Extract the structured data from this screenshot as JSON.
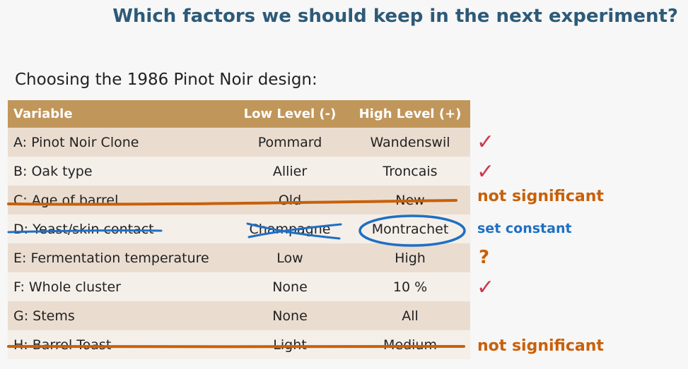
{
  "slide": {
    "title": "Which factors we should keep in the next experiment?",
    "subtitle": "Choosing the 1986 Pinot Noir design:"
  },
  "table": {
    "headers": [
      "Variable",
      "Low Level (-)",
      "High Level (+)"
    ],
    "rows": [
      {
        "variable": "A: Pinot Noir Clone",
        "low": "Pommard",
        "high": "Wandenswil"
      },
      {
        "variable": "B: Oak type",
        "low": "Allier",
        "high": "Troncais"
      },
      {
        "variable": "C: Age of barrel",
        "low": "Old",
        "high": "New"
      },
      {
        "variable": "D: Yeast/skin contact",
        "low": "Champagne",
        "high": "Montrachet"
      },
      {
        "variable": "E: Fermentation temperature",
        "low": "Low",
        "high": "High"
      },
      {
        "variable": "F: Whole cluster",
        "low": "None",
        "high": "10 %"
      },
      {
        "variable": "G: Stems",
        "low": "None",
        "high": "All"
      },
      {
        "variable": "H: Barrel Toast",
        "low": "Light",
        "high": "Medium"
      }
    ]
  },
  "annotations": {
    "row_c": "not significant",
    "row_d": "set constant",
    "row_e": "?",
    "row_h": "not significant",
    "check_mark": "✓"
  },
  "colors": {
    "header_bg": "#c0965a",
    "title": "#2d5a78",
    "orange_ink": "#c8600a",
    "blue_ink": "#1f6fc4",
    "check": "#cc3a4e"
  }
}
